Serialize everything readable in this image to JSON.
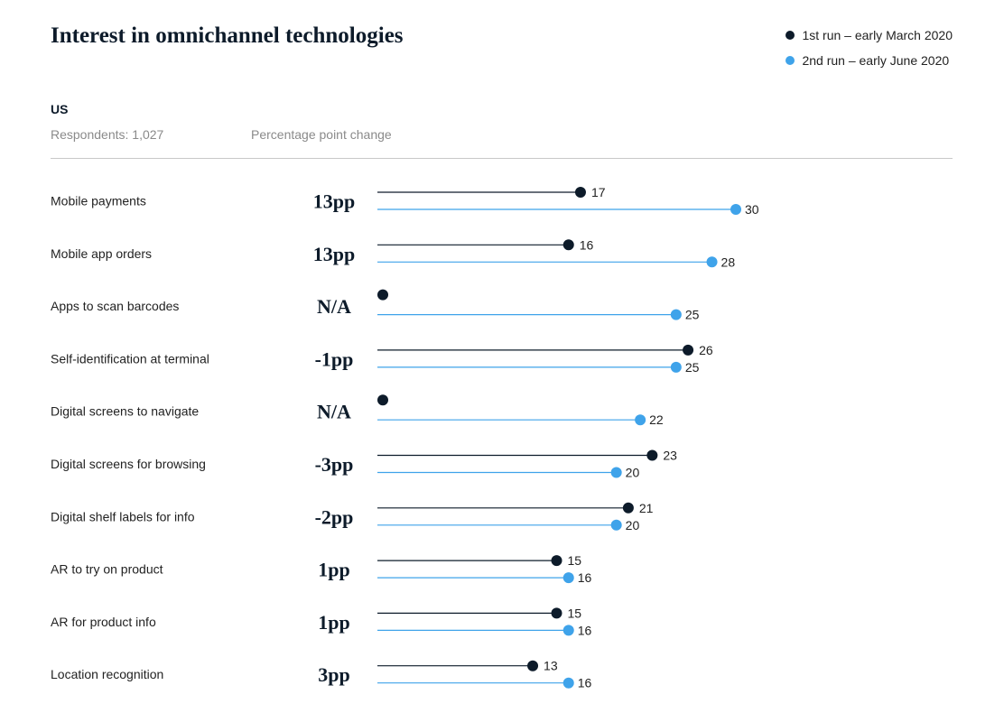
{
  "title": "Interest in omnichannel technologies",
  "legend": [
    {
      "label": "1st run – early March 2020",
      "color": "#0d1b2a"
    },
    {
      "label": "2nd run – early June 2020",
      "color": "#3fa3ea"
    }
  ],
  "region": "US",
  "respondents": "Respondents: 1,027",
  "change_header": "Percentage point change",
  "chart_data": {
    "type": "lollipop",
    "title": "Interest in omnichannel technologies",
    "series": [
      {
        "name": "1st run – early March 2020",
        "color": "#0d1b2a"
      },
      {
        "name": "2nd run – early June 2020",
        "color": "#3fa3ea"
      }
    ],
    "rows": [
      {
        "label": "Mobile payments",
        "change": "13pp",
        "first": 17,
        "second": 30
      },
      {
        "label": "Mobile app orders",
        "change": "13pp",
        "first": 16,
        "second": 28
      },
      {
        "label": "Apps to scan barcodes",
        "change": "N/A",
        "first": null,
        "second": 25
      },
      {
        "label": "Self-identification at terminal",
        "change": "-1pp",
        "first": 26,
        "second": 25
      },
      {
        "label": "Digital screens to navigate",
        "change": "N/A",
        "first": null,
        "second": 22
      },
      {
        "label": "Digital screens for browsing",
        "change": "-3pp",
        "first": 23,
        "second": 20
      },
      {
        "label": "Digital shelf labels for info",
        "change": "-2pp",
        "first": 21,
        "second": 20
      },
      {
        "label": "AR to try on product",
        "change": "1pp",
        "first": 15,
        "second": 16
      },
      {
        "label": "AR for product info",
        "change": "1pp",
        "first": 15,
        "second": 16
      },
      {
        "label": "Location recognition",
        "change": "3pp",
        "first": 13,
        "second": 16
      }
    ]
  }
}
